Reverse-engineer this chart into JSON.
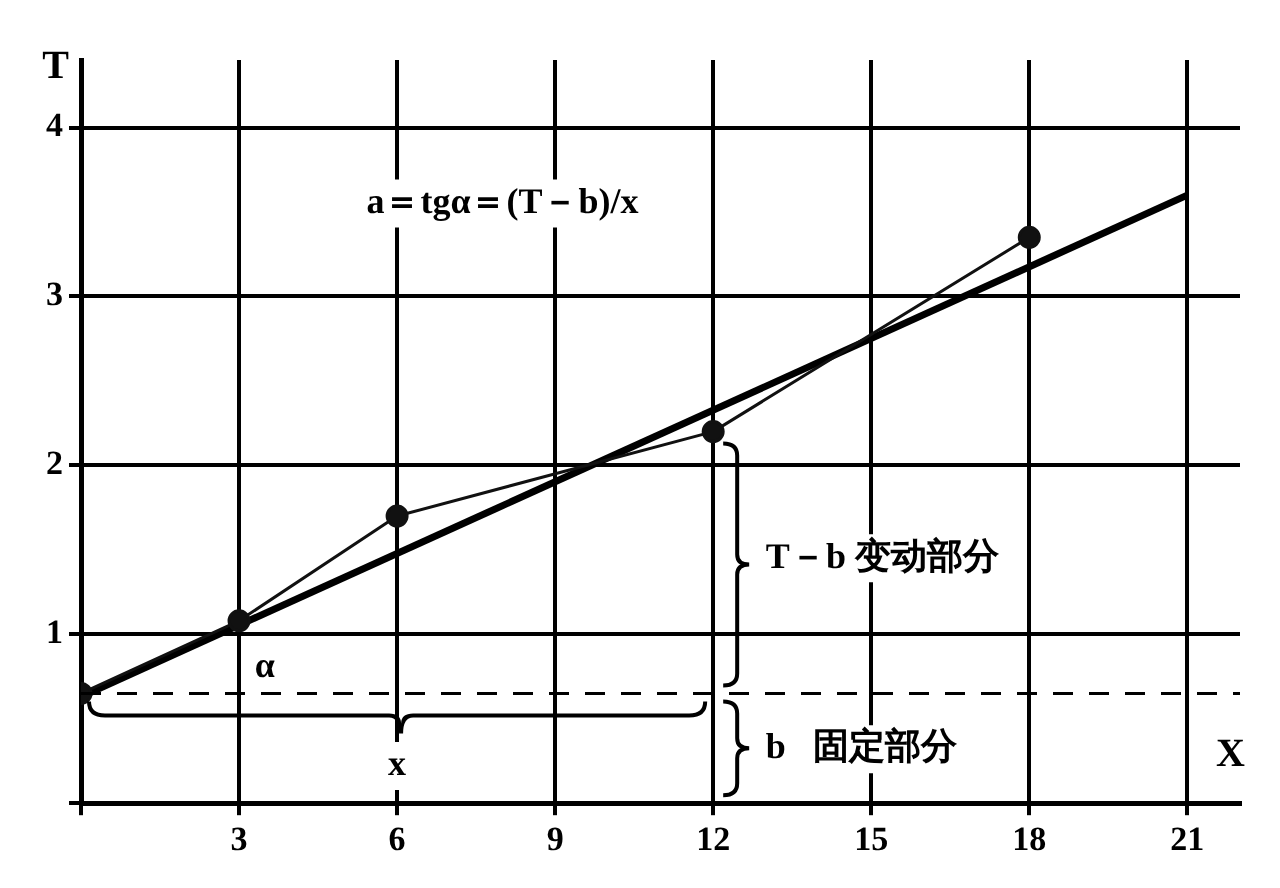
{
  "chart_data": {
    "type": "line",
    "xlabel": "X",
    "ylabel": "T",
    "x": [
      0,
      3,
      6,
      12,
      18
    ],
    "series": [
      {
        "color": "#111111",
        "values": [
          0.65,
          1.08,
          1.7,
          2.2,
          3.35
        ],
        "marker": "circle"
      },
      {
        "color": "#000000",
        "x": [
          0,
          21
        ],
        "values": [
          0.63,
          3.6
        ],
        "marker": "none"
      }
    ],
    "xlim": [
      0,
      22
    ],
    "xticks": [
      {
        "value": 0,
        "label": null
      },
      3,
      6,
      9,
      12,
      15,
      18,
      21
    ],
    "ylim": [
      0,
      4.4
    ],
    "yticks": [
      {
        "value": 0,
        "label": null
      },
      1,
      2,
      3,
      4
    ],
    "grid": true,
    "ref_lines": [
      {
        "axis": "y",
        "value": 0.65,
        "label": null,
        "line_style": "dashed"
      }
    ],
    "annotations": [
      "a＝tgα＝(T－b)/x",
      "α",
      "x",
      "T－b 变动部分",
      "b   固定部分"
    ]
  }
}
